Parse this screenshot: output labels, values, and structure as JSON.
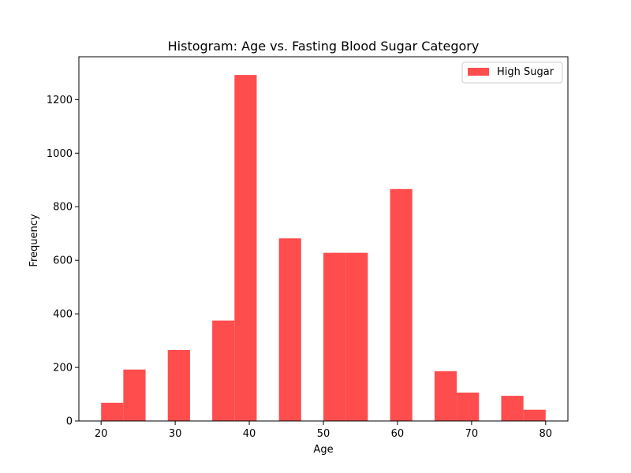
{
  "chart_data": {
    "type": "bar",
    "title": "Histogram: Age vs. Fasting Blood Sugar Category",
    "xlabel": "Age",
    "ylabel": "Frequency",
    "xlim": [
      17.0,
      83.0
    ],
    "ylim": [
      0,
      1360
    ],
    "xticks": [
      20,
      30,
      40,
      50,
      60,
      70,
      80
    ],
    "yticks": [
      0,
      200,
      400,
      600,
      800,
      1000,
      1200
    ],
    "bin_width": 3.0,
    "series": [
      {
        "name": "High Sugar",
        "color": "#ff4d4d",
        "bins": [
          {
            "x0": 20,
            "value": 68
          },
          {
            "x0": 23,
            "value": 192
          },
          {
            "x0": 26,
            "value": 0
          },
          {
            "x0": 29,
            "value": 265
          },
          {
            "x0": 32,
            "value": 0
          },
          {
            "x0": 35,
            "value": 375
          },
          {
            "x0": 38,
            "value": 1292
          },
          {
            "x0": 41,
            "value": 0
          },
          {
            "x0": 44,
            "value": 682
          },
          {
            "x0": 47,
            "value": 0
          },
          {
            "x0": 50,
            "value": 628
          },
          {
            "x0": 53,
            "value": 628
          },
          {
            "x0": 56,
            "value": 0
          },
          {
            "x0": 59,
            "value": 866
          },
          {
            "x0": 62,
            "value": 0
          },
          {
            "x0": 65,
            "value": 186
          },
          {
            "x0": 68,
            "value": 106
          },
          {
            "x0": 71,
            "value": 0
          },
          {
            "x0": 74,
            "value": 94
          },
          {
            "x0": 77,
            "value": 42
          }
        ]
      }
    ],
    "legend": {
      "position": "top-right"
    },
    "grid": false
  }
}
